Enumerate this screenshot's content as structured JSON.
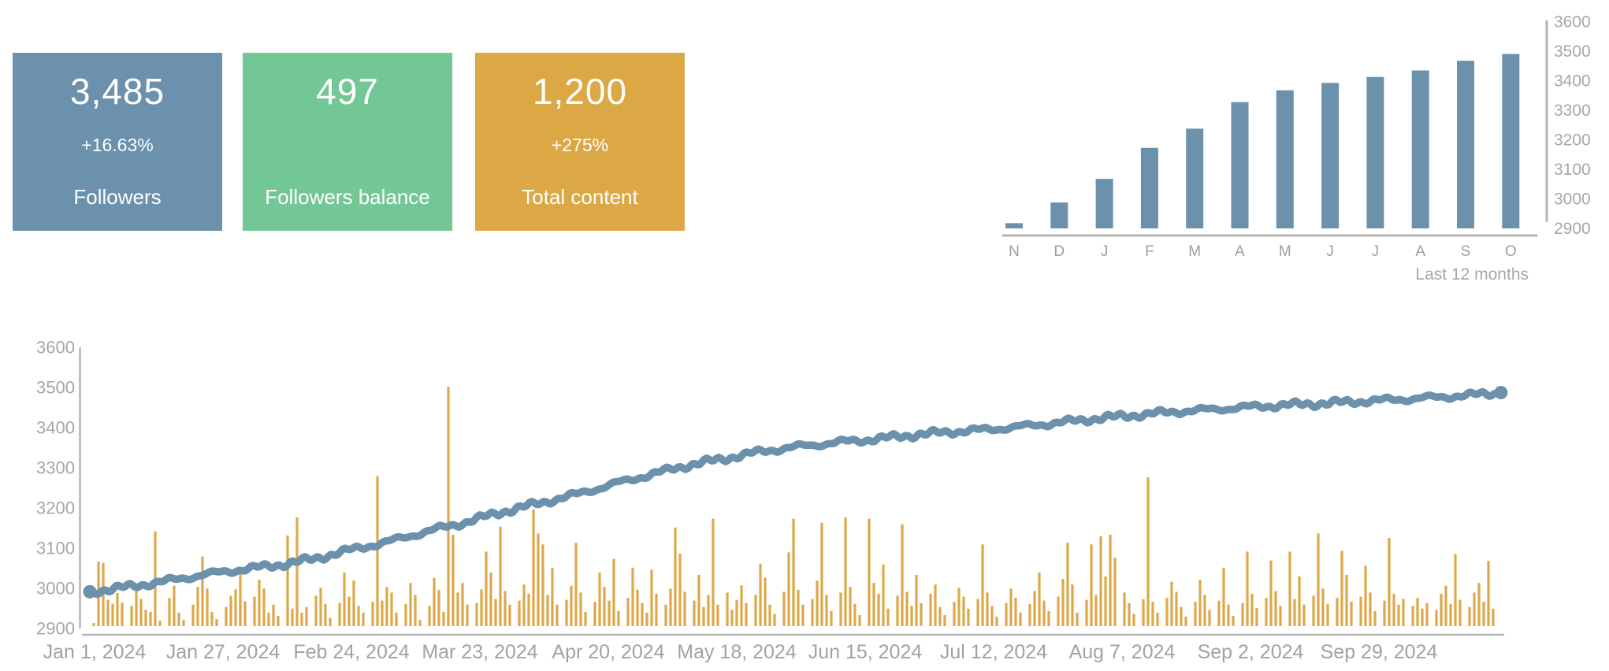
{
  "cards": [
    {
      "value": "3,485",
      "delta": "+16.63%",
      "label": "Followers",
      "color": "#6b91ad"
    },
    {
      "value": "497",
      "delta": "",
      "label": "Followers balance",
      "color": "#73c795"
    },
    {
      "value": "1,200",
      "delta": "+275%",
      "label": "Total content",
      "color": "#dba845"
    }
  ],
  "colors": {
    "blue": "#6b91ad",
    "green": "#73c795",
    "gold": "#dca84a",
    "axis_line": "#b4b4b4",
    "tick_label": "#a7a7a7",
    "date_label": "#a2a2a2",
    "month_label": "#9f9f9f"
  },
  "chart_data": [
    {
      "id": "monthly_followers",
      "type": "bar",
      "title": "Last 12 months",
      "categories": [
        "N",
        "D",
        "J",
        "F",
        "M",
        "A",
        "M",
        "J",
        "J",
        "A",
        "S",
        "O"
      ],
      "values": [
        2915,
        2985,
        3065,
        3170,
        3235,
        3325,
        3365,
        3390,
        3410,
        3432,
        3465,
        3488
      ],
      "yticks": [
        3600,
        3500,
        3400,
        3300,
        3200,
        3100,
        3000,
        2900
      ],
      "ylim": [
        2900,
        3600
      ],
      "xlabel": "",
      "ylabel": "",
      "grid": false,
      "legend": "none",
      "axis_side": "right",
      "bar_color": "#6b91ad"
    },
    {
      "id": "daily_overview",
      "type": "line+bar",
      "title": "",
      "yticks": [
        3600,
        3500,
        3400,
        3300,
        3200,
        3100,
        3000,
        2900
      ],
      "ylim": [
        2900,
        3600
      ],
      "grid": false,
      "legend": "none",
      "axis_side": "left",
      "x_tick_labels": [
        "Jan 1, 2024",
        "Jan 27, 2024",
        "Feb 24, 2024",
        "Mar 23, 2024",
        "Apr 20, 2024",
        "May 18, 2024",
        "Jun 15, 2024",
        "Jul 12, 2024",
        "Aug 7, 2024",
        "Sep 2, 2024",
        "Sep 29, 2024"
      ],
      "line_series": {
        "name": "Followers",
        "color": "#6b91ad",
        "points": [
          [
            0,
            2990
          ],
          [
            8,
            3002
          ],
          [
            16,
            3016
          ],
          [
            24,
            3032
          ],
          [
            32,
            3045
          ],
          [
            40,
            3056
          ],
          [
            48,
            3072
          ],
          [
            56,
            3095
          ],
          [
            64,
            3115
          ],
          [
            72,
            3140
          ],
          [
            80,
            3162
          ],
          [
            88,
            3188
          ],
          [
            96,
            3210
          ],
          [
            104,
            3232
          ],
          [
            112,
            3258
          ],
          [
            120,
            3282
          ],
          [
            128,
            3305
          ],
          [
            136,
            3322
          ],
          [
            144,
            3340
          ],
          [
            152,
            3352
          ],
          [
            160,
            3362
          ],
          [
            168,
            3370
          ],
          [
            176,
            3380
          ],
          [
            184,
            3388
          ],
          [
            192,
            3394
          ],
          [
            200,
            3402
          ],
          [
            208,
            3412
          ],
          [
            216,
            3422
          ],
          [
            224,
            3430
          ],
          [
            232,
            3438
          ],
          [
            240,
            3444
          ],
          [
            248,
            3450
          ],
          [
            256,
            3455
          ],
          [
            264,
            3459
          ],
          [
            272,
            3464
          ],
          [
            280,
            3469
          ],
          [
            288,
            3474
          ],
          [
            296,
            3480
          ],
          [
            302,
            3486
          ]
        ]
      },
      "bar_series": {
        "name": "Content",
        "color": "#dca84a",
        "start_day": 0,
        "values": [
          null,
          null,
          null,
          null,
          2912,
          3065,
          3062,
          2970,
          2960,
          2987,
          2963,
          null,
          2955,
          3008,
          2972,
          2945,
          2940,
          3140,
          2918,
          null,
          2975,
          3005,
          2938,
          2920,
          null,
          2958,
          3002,
          3078,
          2998,
          2940,
          2922,
          null,
          2952,
          2980,
          2996,
          3042,
          2966,
          null,
          2978,
          3020,
          2998,
          2938,
          2958,
          2930,
          null,
          3130,
          2948,
          3175,
          2938,
          2952,
          null,
          2980,
          3000,
          2960,
          2925,
          null,
          2962,
          3038,
          2978,
          3018,
          2955,
          2938,
          null,
          2965,
          3278,
          2968,
          3002,
          2988,
          2938,
          null,
          2960,
          3012,
          2982,
          2920,
          null,
          2955,
          3025,
          2995,
          2940,
          3500,
          3132,
          2988,
          3012,
          2958,
          null,
          2962,
          2996,
          3090,
          3038,
          2972,
          3152,
          2992,
          2958,
          null,
          2968,
          3008,
          2985,
          3195,
          3135,
          3108,
          2982,
          3050,
          2958,
          null,
          2970,
          3005,
          3112,
          2988,
          2940,
          null,
          2965,
          3038,
          3002,
          2968,
          3072,
          2942,
          null,
          2975,
          3050,
          2995,
          2962,
          2938,
          3045,
          2985,
          null,
          2958,
          2998,
          3150,
          3085,
          2990,
          null,
          2968,
          3032,
          2952,
          2982,
          3172,
          2958,
          null,
          2988,
          2945,
          2970,
          3006,
          2962,
          null,
          2982,
          3060,
          3025,
          2958,
          2935,
          null,
          2990,
          3088,
          3172,
          2995,
          2958,
          null,
          2972,
          3018,
          3162,
          2982,
          2942,
          null,
          2988,
          3175,
          3002,
          2960,
          2932,
          null,
          3172,
          3012,
          2985,
          3058,
          2948,
          null,
          2980,
          3158,
          2990,
          2955,
          3032,
          2962,
          null,
          2985,
          3008,
          2952,
          2932,
          null,
          2965,
          3000,
          2978,
          2948,
          null,
          2972,
          3108,
          2988,
          2955,
          2928,
          null,
          2962,
          2998,
          2975,
          2938,
          null,
          2960,
          2992,
          3038,
          2968,
          2942,
          null,
          2978,
          3022,
          3112,
          3008,
          2938,
          null,
          2970,
          3108,
          2982,
          3128,
          3028,
          3132,
          3075,
          null,
          2988,
          2962,
          2935,
          null,
          2972,
          3275,
          2965,
          2938,
          null,
          2975,
          3015,
          2990,
          2952,
          2928,
          null,
          2965,
          3020,
          2982,
          2945,
          null,
          2968,
          3050,
          2958,
          2930,
          null,
          2962,
          3090,
          2985,
          2950,
          null,
          2975,
          3068,
          2992,
          2955,
          null,
          3090,
          2972,
          3028,
          2958,
          null,
          2980,
          3135,
          2998,
          2960,
          null,
          2975,
          3092,
          3032,
          2965,
          null,
          2978,
          3055,
          2988,
          2942,
          null,
          2968,
          3124,
          2985,
          2958,
          2972,
          null,
          2955,
          2975,
          2948,
          2962,
          null,
          2945,
          2985,
          3005,
          2960,
          3084,
          2970,
          null,
          2952,
          2988,
          3012,
          2965,
          3067,
          2948,
          null
        ]
      }
    }
  ]
}
